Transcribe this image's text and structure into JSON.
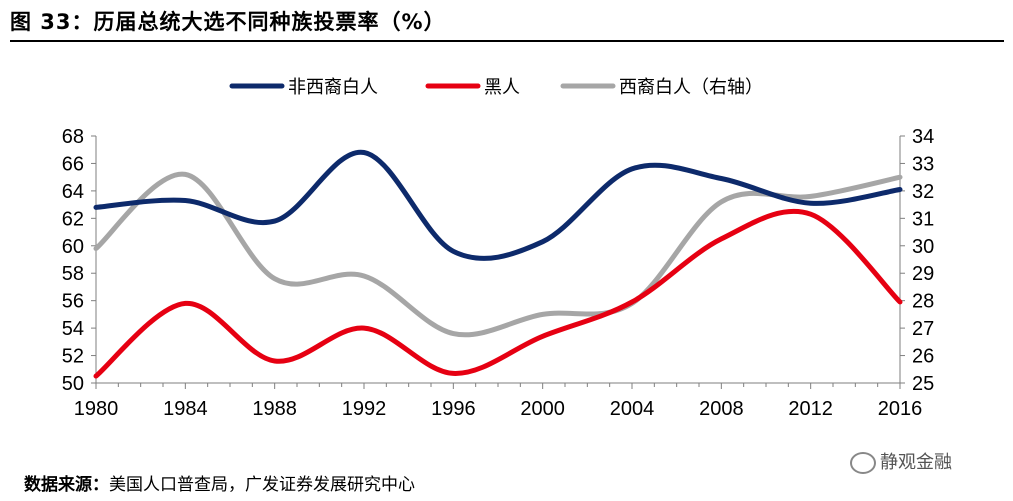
{
  "header": {
    "title": "图 33：历届总统大选不同种族投票率（%）"
  },
  "chart_data": {
    "type": "line",
    "title": "图 33：历届总统大选不同种族投票率（%）",
    "x": [
      1980,
      1984,
      1988,
      1992,
      1996,
      2000,
      2004,
      2008,
      2012,
      2016
    ],
    "x_tick_labels": [
      "1980",
      "1984",
      "1988",
      "1992",
      "1996",
      "2000",
      "2004",
      "2008",
      "2012",
      "2016"
    ],
    "xlim": [
      1980,
      2016
    ],
    "y_left": {
      "ylim": [
        50,
        68
      ],
      "ticks": [
        50,
        52,
        54,
        56,
        58,
        60,
        62,
        64,
        66,
        68
      ],
      "tick_labels": [
        "50",
        "52",
        "54",
        "56",
        "58",
        "60",
        "62",
        "64",
        "66",
        "68"
      ]
    },
    "y_right": {
      "ylim": [
        25,
        34
      ],
      "ticks": [
        25,
        26,
        27,
        28,
        29,
        30,
        31,
        32,
        33,
        34
      ],
      "tick_labels": [
        "25",
        "26",
        "27",
        "28",
        "29",
        "30",
        "31",
        "32",
        "33",
        "34"
      ]
    },
    "grid": false,
    "legend_position": "top",
    "series": [
      {
        "name": "非西裔白人",
        "axis": "left",
        "color": "#0d2a6b",
        "values": [
          62.8,
          63.3,
          61.8,
          66.8,
          59.6,
          60.3,
          65.6,
          64.9,
          63.1,
          64.1
        ]
      },
      {
        "name": "黑人",
        "axis": "left",
        "color": "#e60012",
        "values": [
          50.5,
          55.8,
          51.6,
          54.0,
          50.7,
          53.4,
          55.9,
          60.5,
          62.3,
          55.9
        ]
      },
      {
        "name": "西裔白人（右轴）",
        "axis": "right",
        "color": "#a6a6a6",
        "values": [
          29.9,
          32.6,
          28.8,
          28.9,
          26.8,
          27.5,
          27.9,
          31.6,
          31.8,
          32.5
        ]
      }
    ]
  },
  "footer": {
    "source_label": "数据来源：",
    "source_text": "美国人口普查局，广发证券发展研究中心",
    "watermark": "静观金融",
    "watermark_icon": "wechat-icon"
  }
}
